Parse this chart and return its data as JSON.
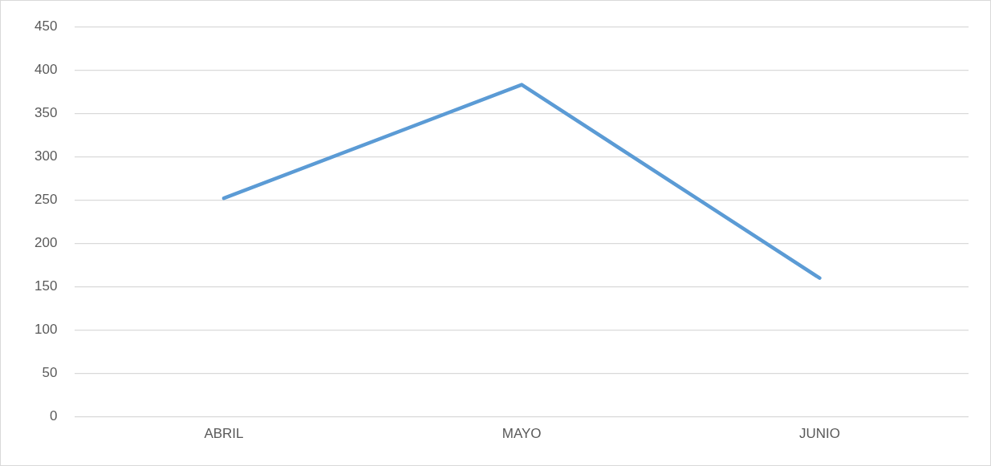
{
  "chart_data": {
    "type": "line",
    "categories": [
      "ABRIL",
      "MAYO",
      "JUNIO"
    ],
    "series": [
      {
        "color": "#5b9bd5",
        "values": [
          252,
          383,
          160
        ]
      }
    ],
    "ylim": [
      0,
      450
    ],
    "yticks": [
      0,
      50,
      100,
      150,
      200,
      250,
      300,
      350,
      400,
      450
    ],
    "grid": "y",
    "legend": false,
    "marker": "none",
    "line_style": "solid"
  }
}
